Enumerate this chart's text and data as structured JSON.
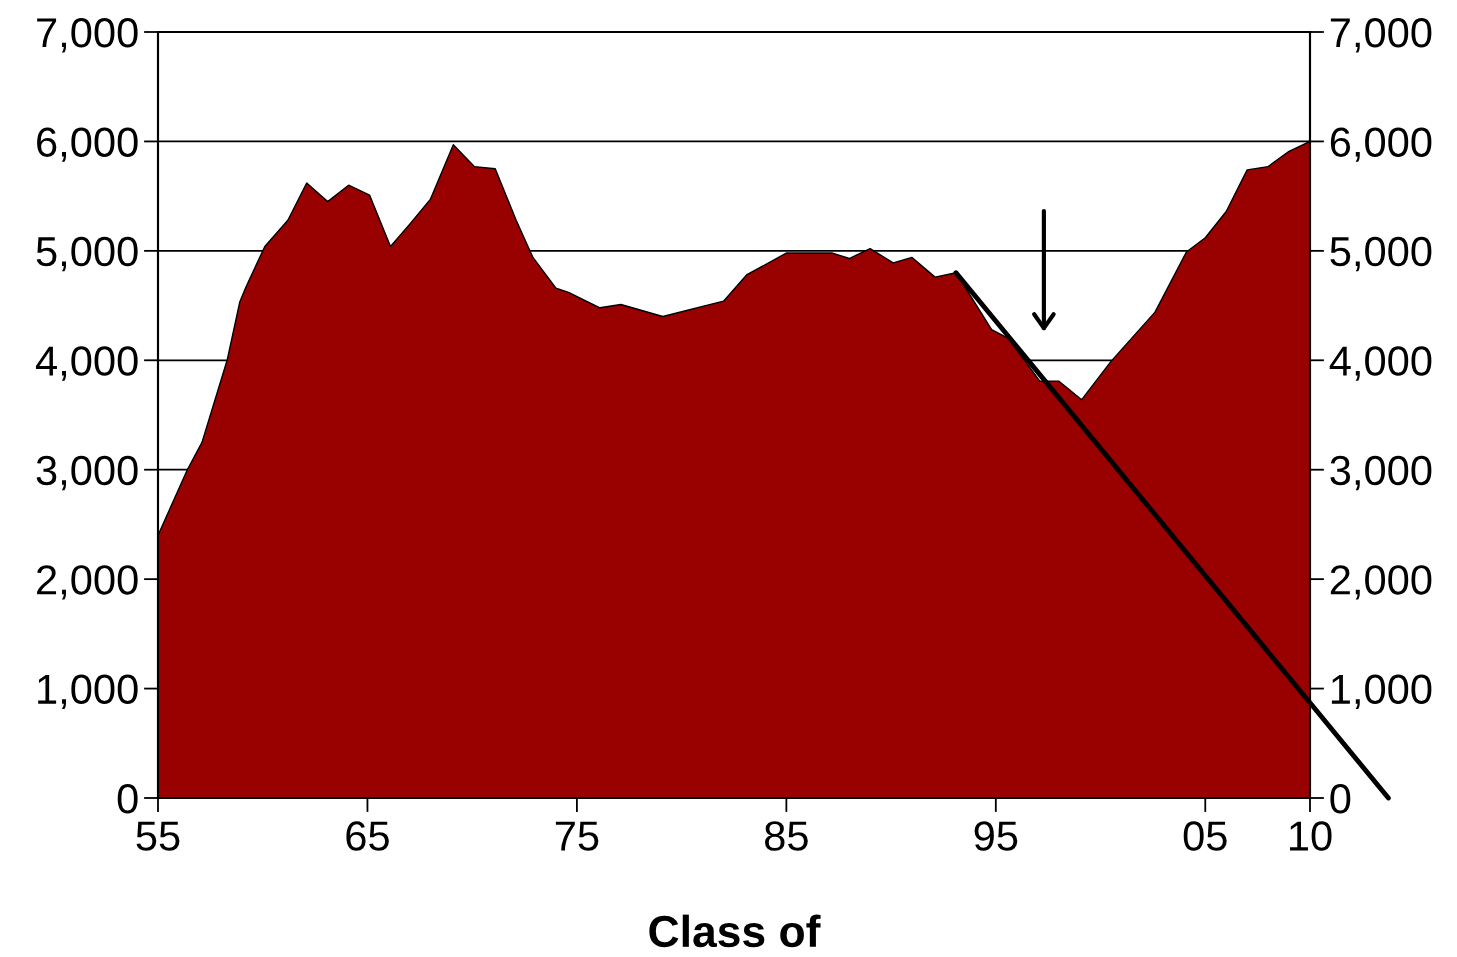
{
  "chart_data": {
    "type": "area",
    "xlabel": "Class of",
    "xlim": [
      1955,
      2010
    ],
    "xticks": [
      {
        "value": 1955,
        "label": "55"
      },
      {
        "value": 1965,
        "label": "65"
      },
      {
        "value": 1975,
        "label": "75"
      },
      {
        "value": 1985,
        "label": "85"
      },
      {
        "value": 1995,
        "label": "95"
      },
      {
        "value": 2005,
        "label": "05"
      },
      {
        "value": 2010,
        "label": "10"
      }
    ],
    "ylim": [
      0,
      7000
    ],
    "yticks": [
      {
        "value": 0,
        "label": "0"
      },
      {
        "value": 1000,
        "label": "1,000"
      },
      {
        "value": 2000,
        "label": "2,000"
      },
      {
        "value": 3000,
        "label": "3,000"
      },
      {
        "value": 4000,
        "label": "4,000"
      },
      {
        "value": 5000,
        "label": "5,000"
      },
      {
        "value": 6000,
        "label": "6,000"
      },
      {
        "value": 7000,
        "label": "7,000"
      }
    ],
    "y2lim": [
      0,
      7000
    ],
    "y2ticks": [
      {
        "value": 0,
        "label": "0"
      },
      {
        "value": 1000,
        "label": "1,000"
      },
      {
        "value": 2000,
        "label": "2,000"
      },
      {
        "value": 3000,
        "label": "3,000"
      },
      {
        "value": 4000,
        "label": "4,000"
      },
      {
        "value": 5000,
        "label": "5,000"
      },
      {
        "value": 6000,
        "label": "6,000"
      },
      {
        "value": 7000,
        "label": "7,000"
      }
    ],
    "grid": "y",
    "legend": false,
    "series": [
      {
        "color": "#990000",
        "x": [
          1955,
          1956.4,
          1957.1,
          1958.3,
          1958.9,
          1959.2,
          1960.1,
          1961.2,
          1962.1,
          1963.1,
          1964.1,
          1965.1,
          1966.1,
          1967.0,
          1968.0,
          1969.1,
          1970.1,
          1971.1,
          1972.1,
          1972.9,
          1974.0,
          1974.6,
          1976.1,
          1977.1,
          1979.1,
          1982.0,
          1983.1,
          1985.0,
          1987.2,
          1988.0,
          1989.0,
          1990.1,
          1991.0,
          1992.1,
          1993.1,
          1994.8,
          1995.6,
          1997.1,
          1998.0,
          1999.1,
          2000.5,
          2002.6,
          2004.1,
          2005.0,
          2006.0,
          2007.0,
          2008.0,
          2009.0,
          2010.0
        ],
        "values": [
          2400,
          3000,
          3250,
          4000,
          4530,
          4670,
          5040,
          5280,
          5620,
          5450,
          5600,
          5510,
          5040,
          5240,
          5470,
          5970,
          5770,
          5750,
          5280,
          4940,
          4660,
          4620,
          4480,
          4510,
          4400,
          4540,
          4780,
          4980,
          4980,
          4930,
          5020,
          4890,
          4940,
          4760,
          4800,
          4280,
          4200,
          3810,
          3810,
          3640,
          3990,
          4440,
          4990,
          5120,
          5360,
          5740,
          5770,
          5910,
          6000
        ]
      },
      {
        "type": "line",
        "color": "#000000",
        "x": [
          1993.1,
          2010
        ],
        "values": [
          4800,
          870
        ]
      }
    ]
  }
}
